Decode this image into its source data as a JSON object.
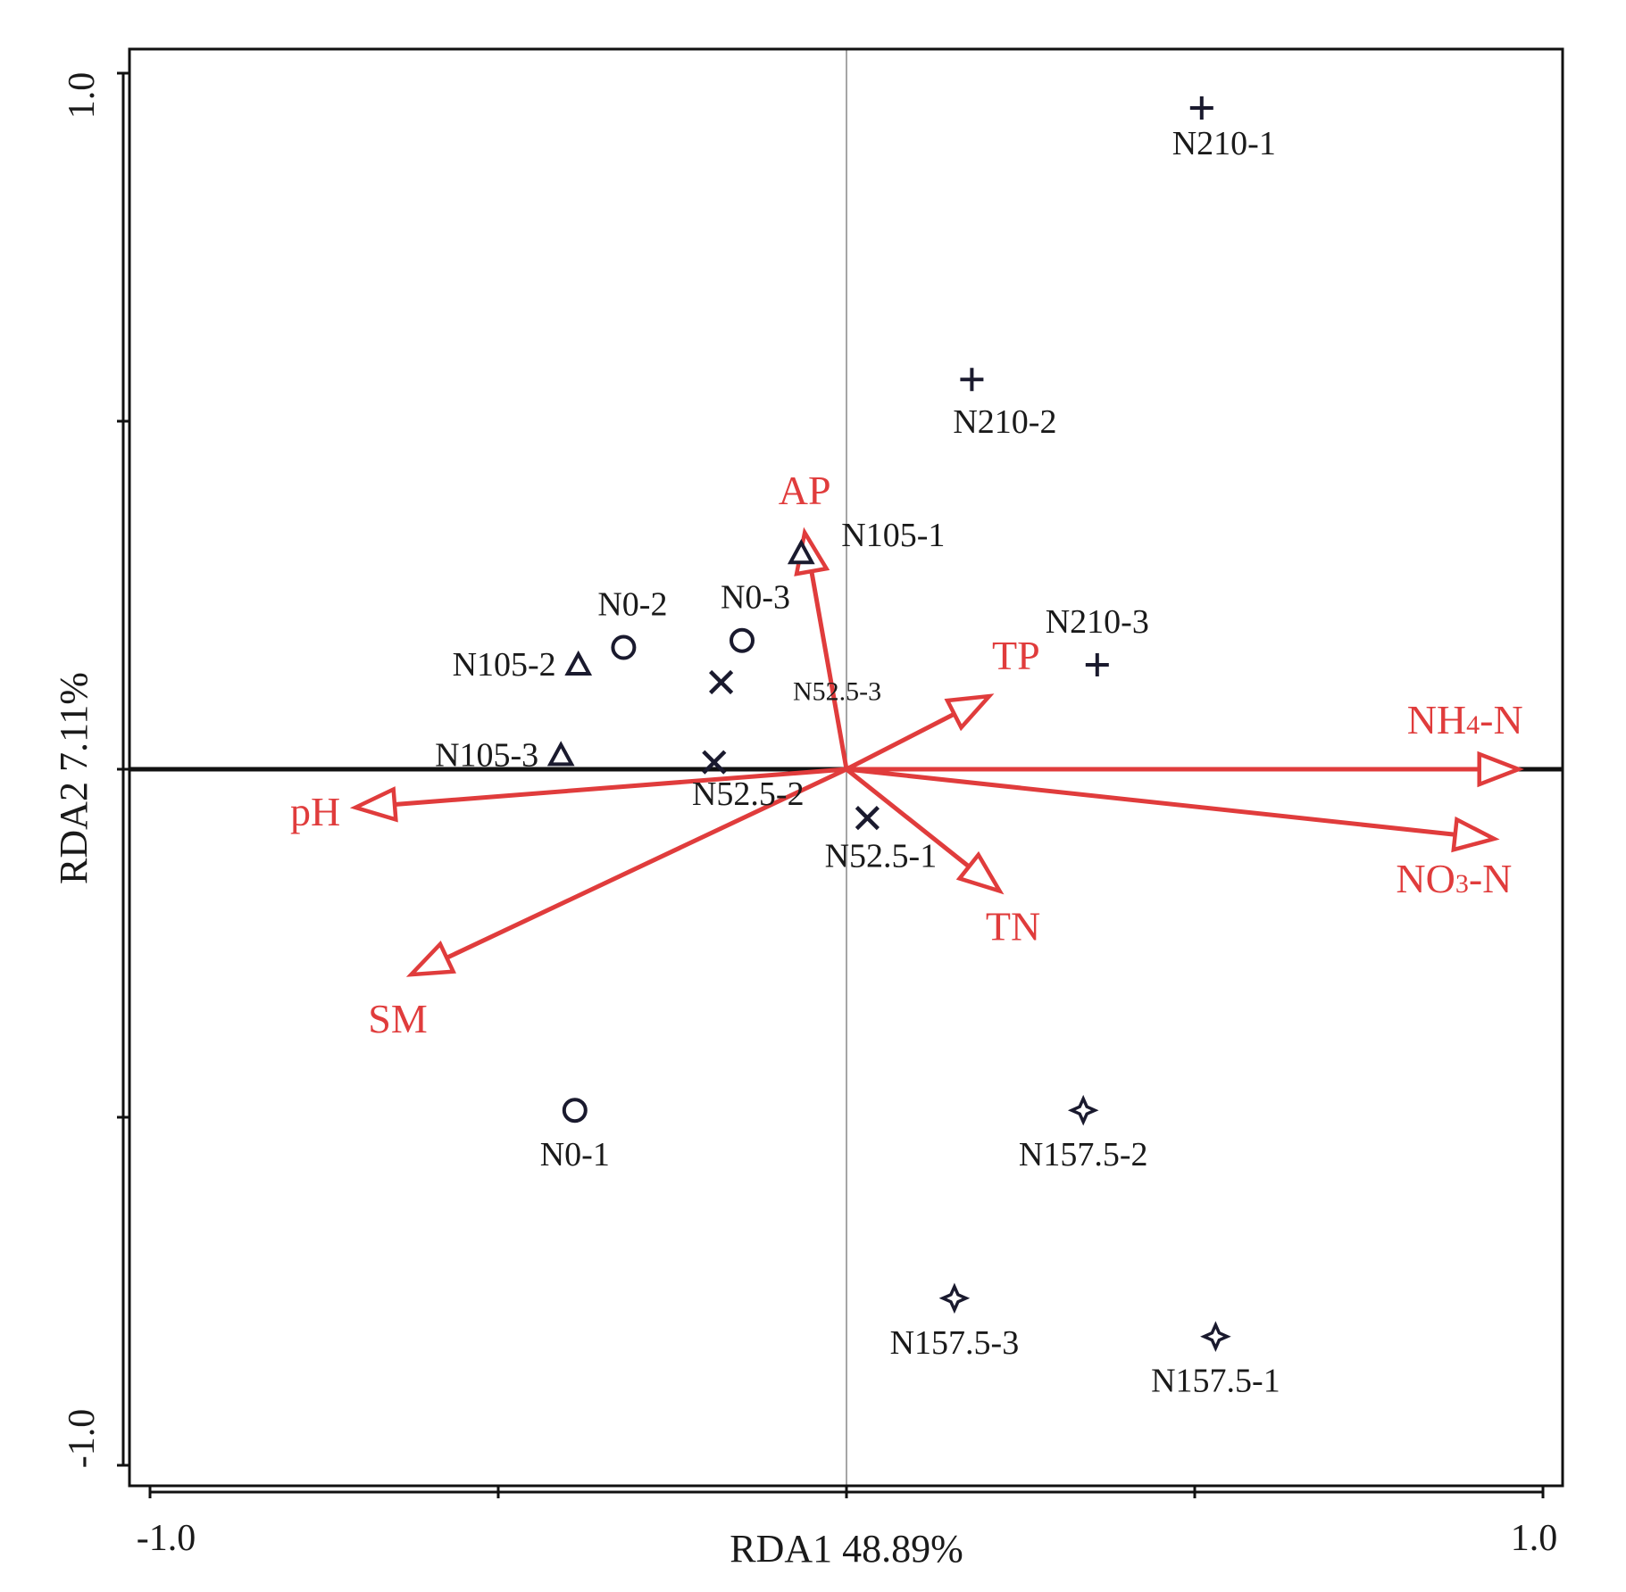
{
  "chart_data": {
    "type": "scatter",
    "subtype": "rda-biplot",
    "xlabel": "RDA1 48.89%",
    "ylabel": "RDA2 7.11%",
    "xlim": [
      -1.05,
      1.05
    ],
    "ylim": [
      -1.05,
      1.05
    ],
    "x_ticks": [
      -1.0,
      -0.5,
      0.0,
      0.5,
      1.0
    ],
    "y_ticks": [
      -1.0,
      -0.5,
      0.0,
      0.5,
      1.0
    ],
    "x_tick_labels": [
      "-1.0",
      "1.0"
    ],
    "y_tick_labels": [
      "-1.0",
      "1.0"
    ],
    "colors": {
      "samples": "#1a1a2e",
      "env": "#e03c3c",
      "axis": "#111111",
      "zero_line_v": "#888888"
    },
    "samples": [
      {
        "name": "N0-1",
        "group": "N0",
        "marker": "circle",
        "x": -0.39,
        "y": -0.49
      },
      {
        "name": "N0-2",
        "group": "N0",
        "marker": "circle",
        "x": -0.32,
        "y": 0.175
      },
      {
        "name": "N0-3",
        "group": "N0",
        "marker": "circle",
        "x": -0.15,
        "y": 0.185
      },
      {
        "name": "N52.5-1",
        "group": "N52.5",
        "marker": "x",
        "x": 0.03,
        "y": -0.07
      },
      {
        "name": "N52.5-2",
        "group": "N52.5",
        "marker": "x",
        "x": -0.19,
        "y": 0.01
      },
      {
        "name": "N52.5-3",
        "group": "N52.5",
        "marker": "x",
        "x": -0.18,
        "y": 0.125
      },
      {
        "name": "N105-1",
        "group": "N105",
        "marker": "triangle",
        "x": -0.065,
        "y": 0.31
      },
      {
        "name": "N105-2",
        "group": "N105",
        "marker": "triangle",
        "x": -0.385,
        "y": 0.15
      },
      {
        "name": "N105-3",
        "group": "N105",
        "marker": "triangle",
        "x": -0.41,
        "y": 0.02
      },
      {
        "name": "N157.5-1",
        "group": "N157.5",
        "marker": "star",
        "x": 0.53,
        "y": -0.815
      },
      {
        "name": "N157.5-2",
        "group": "N157.5",
        "marker": "star",
        "x": 0.34,
        "y": -0.49
      },
      {
        "name": "N157.5-3",
        "group": "N157.5",
        "marker": "star",
        "x": 0.155,
        "y": -0.76
      },
      {
        "name": "N210-1",
        "group": "N210",
        "marker": "plus",
        "x": 0.51,
        "y": 0.95
      },
      {
        "name": "N210-2",
        "group": "N210",
        "marker": "plus",
        "x": 0.18,
        "y": 0.56
      },
      {
        "name": "N210-3",
        "group": "N210",
        "marker": "plus",
        "x": 0.36,
        "y": 0.15
      }
    ],
    "env_vectors": [
      {
        "name": "AP",
        "x": -0.06,
        "y": 0.34
      },
      {
        "name": "TP",
        "x": 0.205,
        "y": 0.105
      },
      {
        "name": "NH4-N",
        "label_main": "NH",
        "label_sub": "4",
        "label_tail": "-N",
        "x": 0.965,
        "y": 0.0
      },
      {
        "name": "NO3-N",
        "label_main": "NO",
        "label_sub": "3",
        "label_tail": "-N",
        "x": 0.93,
        "y": -0.1
      },
      {
        "name": "TN",
        "x": 0.22,
        "y": -0.175
      },
      {
        "name": "pH",
        "x": -0.705,
        "y": -0.055
      },
      {
        "name": "SM",
        "x": -0.625,
        "y": -0.295
      }
    ]
  }
}
